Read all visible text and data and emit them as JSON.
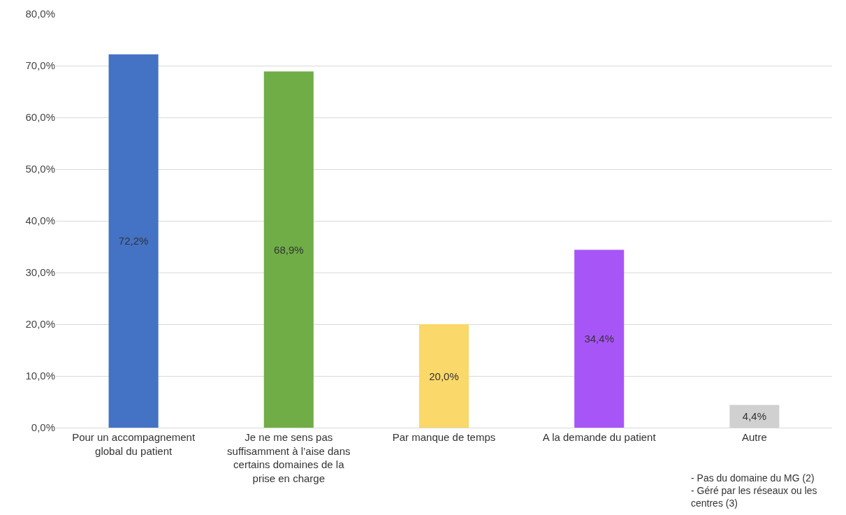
{
  "chart_data": {
    "type": "bar",
    "categories": [
      "Pour un accompagnement global du patient",
      "Je ne me sens pas suffisamment à l’aise dans certains domaines de la prise en charge",
      "Par manque de temps",
      "A la demande du patient",
      "Autre"
    ],
    "values": [
      72.2,
      68.9,
      20.0,
      34.4,
      4.4
    ],
    "colors": [
      "#4472c4",
      "#70ad47",
      "#fad86a",
      "#a855f7",
      "#d0d0d0"
    ],
    "value_labels": [
      "72,2%",
      "68,9%",
      "20,0%",
      "34,4%",
      "4,4%"
    ],
    "ylim": [
      0,
      80
    ],
    "yticks": [
      {
        "value": 0,
        "label": "0,0%"
      },
      {
        "value": 10,
        "label": "10,0%"
      },
      {
        "value": 20,
        "label": "20,0%"
      },
      {
        "value": 30,
        "label": "30,0%"
      },
      {
        "value": 40,
        "label": "40,0%"
      },
      {
        "value": 50,
        "label": "50,0%"
      },
      {
        "value": 60,
        "label": "60,0%"
      },
      {
        "value": 70,
        "label": "70,0%"
      },
      {
        "value": 80,
        "label": "80,0%"
      }
    ],
    "grid": "y",
    "annotations": [
      "- Pas du domaine du MG (2)\n- Géré par les réseaux ou les centres (3)"
    ]
  }
}
